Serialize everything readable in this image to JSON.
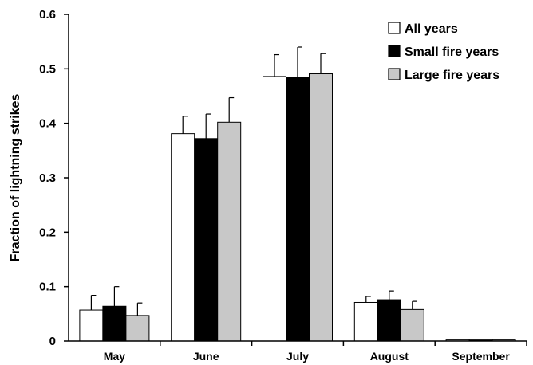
{
  "chart_data": {
    "type": "bar",
    "title": "",
    "xlabel": "",
    "ylabel": "Fraction of lightning strikes",
    "ylim": [
      0,
      0.6
    ],
    "yticks": [
      "0",
      "0.1",
      "0.2",
      "0.3",
      "0.4",
      "0.5",
      "0.6"
    ],
    "grid": false,
    "legend_position": "top-right",
    "categories": [
      "May",
      "June",
      "July",
      "August",
      "September"
    ],
    "series": [
      {
        "name": "All years",
        "color": "#ffffff",
        "values": [
          0.057,
          0.381,
          0.486,
          0.071,
          0.002
        ],
        "errors": [
          0.027,
          0.032,
          0.04,
          0.011,
          0.0
        ]
      },
      {
        "name": "Small fire years",
        "color": "#000000",
        "values": [
          0.064,
          0.372,
          0.485,
          0.076,
          0.002
        ],
        "errors": [
          0.036,
          0.045,
          0.055,
          0.016,
          0.0
        ]
      },
      {
        "name": "Large fire years",
        "color": "#c8c8c8",
        "values": [
          0.047,
          0.402,
          0.491,
          0.058,
          0.002
        ],
        "errors": [
          0.023,
          0.045,
          0.037,
          0.015,
          0.0
        ]
      }
    ]
  }
}
